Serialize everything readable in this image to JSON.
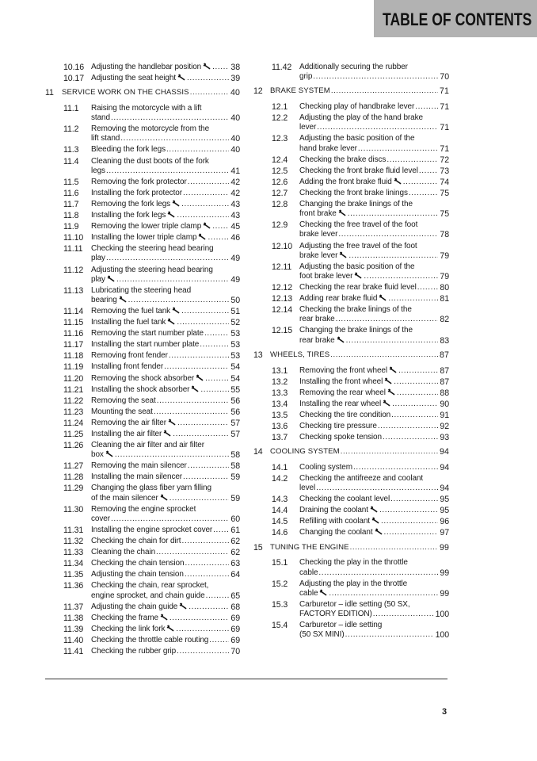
{
  "header": {
    "title": "TABLE OF CONTENTS",
    "background": "#b2b2b2"
  },
  "left": [
    {
      "num": "10.16",
      "title": [
        "Adjusting the handlebar position"
      ],
      "wrench": true,
      "page": "38"
    },
    {
      "num": "10.17",
      "title": [
        "Adjusting the seat height"
      ],
      "wrench": true,
      "page": "39"
    },
    {
      "chapter": true,
      "num": "11",
      "title": [
        "SERVICE WORK ON THE CHASSIS"
      ],
      "page": "40"
    },
    {
      "num": "11.1",
      "title": [
        "Raising the motorcycle with a lift",
        "stand"
      ],
      "page": "40"
    },
    {
      "num": "11.2",
      "title": [
        "Removing the motorcycle from the",
        "lift stand"
      ],
      "page": "40"
    },
    {
      "num": "11.3",
      "title": [
        "Bleeding the fork legs"
      ],
      "page": "40"
    },
    {
      "num": "11.4",
      "title": [
        "Cleaning the dust boots of the fork",
        "legs"
      ],
      "page": "41"
    },
    {
      "num": "11.5",
      "title": [
        "Removing the fork protector"
      ],
      "page": "42"
    },
    {
      "num": "11.6",
      "title": [
        "Installing the fork protector"
      ],
      "page": "42"
    },
    {
      "num": "11.7",
      "title": [
        "Removing the fork legs"
      ],
      "wrench": true,
      "page": "43"
    },
    {
      "num": "11.8",
      "title": [
        "Installing the fork legs"
      ],
      "wrench": true,
      "page": "43"
    },
    {
      "num": "11.9",
      "title": [
        "Removing the lower triple clamp"
      ],
      "wrench": true,
      "page": "45"
    },
    {
      "num": "11.10",
      "title": [
        "Installing the lower triple clamp"
      ],
      "wrench": true,
      "page": "46"
    },
    {
      "num": "11.11",
      "title": [
        "Checking the steering head bearing",
        "play"
      ],
      "page": "49"
    },
    {
      "num": "11.12",
      "title": [
        "Adjusting the steering head bearing",
        "play"
      ],
      "wrench": true,
      "page": "49"
    },
    {
      "num": "11.13",
      "title": [
        "Lubricating the steering head",
        "bearing"
      ],
      "wrench": true,
      "page": "50"
    },
    {
      "num": "11.14",
      "title": [
        "Removing the fuel tank"
      ],
      "wrench": true,
      "page": "51"
    },
    {
      "num": "11.15",
      "title": [
        "Installing the fuel tank"
      ],
      "wrench": true,
      "page": "52"
    },
    {
      "num": "11.16",
      "title": [
        "Removing the start number plate"
      ],
      "page": "53"
    },
    {
      "num": "11.17",
      "title": [
        "Installing the start number plate"
      ],
      "page": "53"
    },
    {
      "num": "11.18",
      "title": [
        "Removing front fender"
      ],
      "page": "53"
    },
    {
      "num": "11.19",
      "title": [
        "Installing front fender"
      ],
      "page": "54"
    },
    {
      "num": "11.20",
      "title": [
        "Removing the shock absorber"
      ],
      "wrench": true,
      "page": "54"
    },
    {
      "num": "11.21",
      "title": [
        "Installing the shock absorber"
      ],
      "wrench": true,
      "page": "55"
    },
    {
      "num": "11.22",
      "title": [
        "Removing the seat"
      ],
      "page": "56"
    },
    {
      "num": "11.23",
      "title": [
        "Mounting the seat"
      ],
      "page": "56"
    },
    {
      "num": "11.24",
      "title": [
        "Removing the air filter"
      ],
      "wrench": true,
      "page": "57"
    },
    {
      "num": "11.25",
      "title": [
        "Installing the air filter"
      ],
      "wrench": true,
      "page": "57"
    },
    {
      "num": "11.26",
      "title": [
        "Cleaning the air filter and air filter",
        "box"
      ],
      "wrench": true,
      "page": "58"
    },
    {
      "num": "11.27",
      "title": [
        "Removing the main silencer"
      ],
      "page": "58"
    },
    {
      "num": "11.28",
      "title": [
        "Installing the main silencer"
      ],
      "page": "59"
    },
    {
      "num": "11.29",
      "title": [
        "Changing the glass fiber yarn filling",
        "of the main silencer"
      ],
      "wrench": true,
      "page": "59"
    },
    {
      "num": "11.30",
      "title": [
        "Removing the engine sprocket",
        "cover"
      ],
      "page": "60"
    },
    {
      "num": "11.31",
      "title": [
        "Installing the engine sprocket cover"
      ],
      "page": "61"
    },
    {
      "num": "11.32",
      "title": [
        "Checking the chain for dirt"
      ],
      "page": "62"
    },
    {
      "num": "11.33",
      "title": [
        "Cleaning the chain"
      ],
      "page": "62"
    },
    {
      "num": "11.34",
      "title": [
        "Checking the chain tension"
      ],
      "page": "63"
    },
    {
      "num": "11.35",
      "title": [
        "Adjusting the chain tension"
      ],
      "page": "64"
    },
    {
      "num": "11.36",
      "title": [
        "Checking the chain, rear sprocket,",
        "engine sprocket, and chain guide"
      ],
      "page": "65"
    },
    {
      "num": "11.37",
      "title": [
        "Adjusting the chain guide"
      ],
      "wrench": true,
      "page": "68"
    },
    {
      "num": "11.38",
      "title": [
        "Checking the frame"
      ],
      "wrench": true,
      "page": "69"
    },
    {
      "num": "11.39",
      "title": [
        "Checking the link fork"
      ],
      "wrench": true,
      "page": "69"
    },
    {
      "num": "11.40",
      "title": [
        "Checking the throttle cable routing"
      ],
      "page": "69"
    },
    {
      "num": "11.41",
      "title": [
        "Checking the rubber grip"
      ],
      "page": "70"
    }
  ],
  "right": [
    {
      "num": "11.42",
      "title": [
        "Additionally securing the rubber",
        "grip"
      ],
      "page": "70"
    },
    {
      "chapter": true,
      "num": "12",
      "title": [
        "BRAKE SYSTEM"
      ],
      "page": "71"
    },
    {
      "num": "12.1",
      "title": [
        "Checking play of handbrake lever"
      ],
      "page": "71"
    },
    {
      "num": "12.2",
      "title": [
        "Adjusting the play of the hand brake",
        "lever"
      ],
      "page": "71"
    },
    {
      "num": "12.3",
      "title": [
        "Adjusting the basic position of the",
        "hand brake lever"
      ],
      "page": "71"
    },
    {
      "num": "12.4",
      "title": [
        "Checking the brake discs"
      ],
      "page": "72"
    },
    {
      "num": "12.5",
      "title": [
        "Checking the front brake fluid level"
      ],
      "page": "73"
    },
    {
      "num": "12.6",
      "title": [
        "Adding the front brake fluid"
      ],
      "wrench": true,
      "page": "74"
    },
    {
      "num": "12.7",
      "title": [
        "Checking the front brake linings"
      ],
      "page": "75"
    },
    {
      "num": "12.8",
      "title": [
        "Changing the brake linings of the",
        "front brake"
      ],
      "wrench": true,
      "page": "75"
    },
    {
      "num": "12.9",
      "title": [
        "Checking the free travel of the foot",
        "brake lever"
      ],
      "page": "78"
    },
    {
      "num": "12.10",
      "title": [
        "Adjusting the free travel of the foot",
        "brake lever"
      ],
      "wrench": true,
      "page": "79"
    },
    {
      "num": "12.11",
      "title": [
        "Adjusting the basic position of the",
        "foot brake lever"
      ],
      "wrench": true,
      "page": "79"
    },
    {
      "num": "12.12",
      "title": [
        "Checking the rear brake fluid level"
      ],
      "page": "80"
    },
    {
      "num": "12.13",
      "title": [
        "Adding rear brake fluid"
      ],
      "wrench": true,
      "page": "81"
    },
    {
      "num": "12.14",
      "title": [
        "Checking the brake linings of the",
        "rear brake"
      ],
      "page": "82"
    },
    {
      "num": "12.15",
      "title": [
        "Changing the brake linings of the",
        "rear brake"
      ],
      "wrench": true,
      "page": "83"
    },
    {
      "chapter": true,
      "num": "13",
      "title": [
        "WHEELS, TIRES"
      ],
      "page": "87"
    },
    {
      "num": "13.1",
      "title": [
        "Removing the front wheel"
      ],
      "wrench": true,
      "page": "87"
    },
    {
      "num": "13.2",
      "title": [
        "Installing the front wheel"
      ],
      "wrench": true,
      "page": "87"
    },
    {
      "num": "13.3",
      "title": [
        "Removing the rear wheel"
      ],
      "wrench": true,
      "page": "88"
    },
    {
      "num": "13.4",
      "title": [
        "Installing the rear wheel"
      ],
      "wrench": true,
      "page": "90"
    },
    {
      "num": "13.5",
      "title": [
        "Checking the tire condition"
      ],
      "page": "91"
    },
    {
      "num": "13.6",
      "title": [
        "Checking tire pressure"
      ],
      "page": "92"
    },
    {
      "num": "13.7",
      "title": [
        "Checking spoke tension"
      ],
      "page": "93"
    },
    {
      "chapter": true,
      "num": "14",
      "title": [
        "COOLING SYSTEM"
      ],
      "page": "94"
    },
    {
      "num": "14.1",
      "title": [
        "Cooling system"
      ],
      "page": "94"
    },
    {
      "num": "14.2",
      "title": [
        "Checking the antifreeze and coolant",
        "level"
      ],
      "page": "94"
    },
    {
      "num": "14.3",
      "title": [
        "Checking the coolant level"
      ],
      "page": "95"
    },
    {
      "num": "14.4",
      "title": [
        "Draining the coolant"
      ],
      "wrench": true,
      "page": "95"
    },
    {
      "num": "14.5",
      "title": [
        "Refilling with coolant"
      ],
      "wrench": true,
      "page": "96"
    },
    {
      "num": "14.6",
      "title": [
        "Changing the coolant"
      ],
      "wrench": true,
      "page": "97"
    },
    {
      "chapter": true,
      "num": "15",
      "title": [
        "TUNING THE ENGINE"
      ],
      "page": "99"
    },
    {
      "num": "15.1",
      "title": [
        "Checking the play in the throttle",
        "cable"
      ],
      "page": "99"
    },
    {
      "num": "15.2",
      "title": [
        "Adjusting the play in the throttle",
        "cable"
      ],
      "wrench": true,
      "page": "99"
    },
    {
      "num": "15.3",
      "title": [
        "Carburetor – idle setting (50 SX,",
        "FACTORY EDITION)"
      ],
      "page": "100"
    },
    {
      "num": "15.4",
      "title": [
        "Carburetor – idle setting",
        "(50 SX MINI)"
      ],
      "page": "100"
    }
  ],
  "footer": {
    "page_number": "3"
  }
}
